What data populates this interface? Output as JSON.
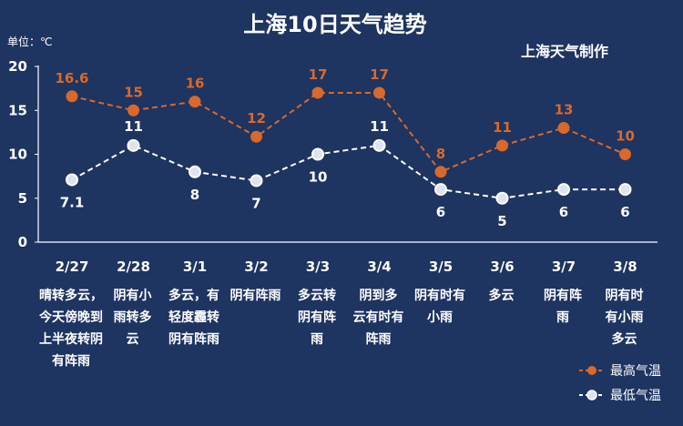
{
  "colors": {
    "background": "#1e3461",
    "high": "#d9692a",
    "low": "#ffffff",
    "low_fill": "#dde3f0"
  },
  "chart_data": {
    "type": "line",
    "title": "上海10日天气趋势",
    "credit": "上海天气制作",
    "unit_label": "单位：℃",
    "categories": [
      "2/27",
      "2/28",
      "3/1",
      "3/2",
      "3/3",
      "3/4",
      "3/5",
      "3/6",
      "3/7",
      "3/8"
    ],
    "ylim": [
      0,
      20
    ],
    "yticks": [
      "0",
      "5",
      "10",
      "15",
      "20"
    ],
    "series": [
      {
        "name": "最高气温",
        "values": [
          16.6,
          15,
          16,
          12,
          17,
          17,
          8,
          11,
          13,
          10
        ],
        "labels": [
          "16.6",
          "15",
          "16",
          "12",
          "17",
          "17",
          "8",
          "11",
          "13",
          "10"
        ]
      },
      {
        "name": "最低气温",
        "values": [
          7.1,
          11,
          8,
          7,
          10,
          11,
          6,
          5,
          6,
          6
        ],
        "labels": [
          "7.1",
          "11",
          "8",
          "7",
          "10",
          "11",
          "6",
          "5",
          "6",
          "6"
        ]
      }
    ],
    "descriptions": [
      [
        "晴转多云，",
        "今天傍晚到",
        "上半夜转阴",
        "有阵雨"
      ],
      [
        "阴有小",
        "雨转多",
        "云"
      ],
      [
        "多云，有",
        "轻度霾转",
        "阴有阵雨"
      ],
      [
        "阴有阵雨"
      ],
      [
        "多云转",
        "阴有阵",
        "雨"
      ],
      [
        "阴到多",
        "云有时有",
        "阵雨"
      ],
      [
        "阴有时有",
        "小雨"
      ],
      [
        "多云"
      ],
      [
        "阴有阵",
        "雨"
      ],
      [
        "阴有时",
        "有小雨",
        "多云"
      ]
    ],
    "grid": false,
    "legend": "bottom-right"
  }
}
